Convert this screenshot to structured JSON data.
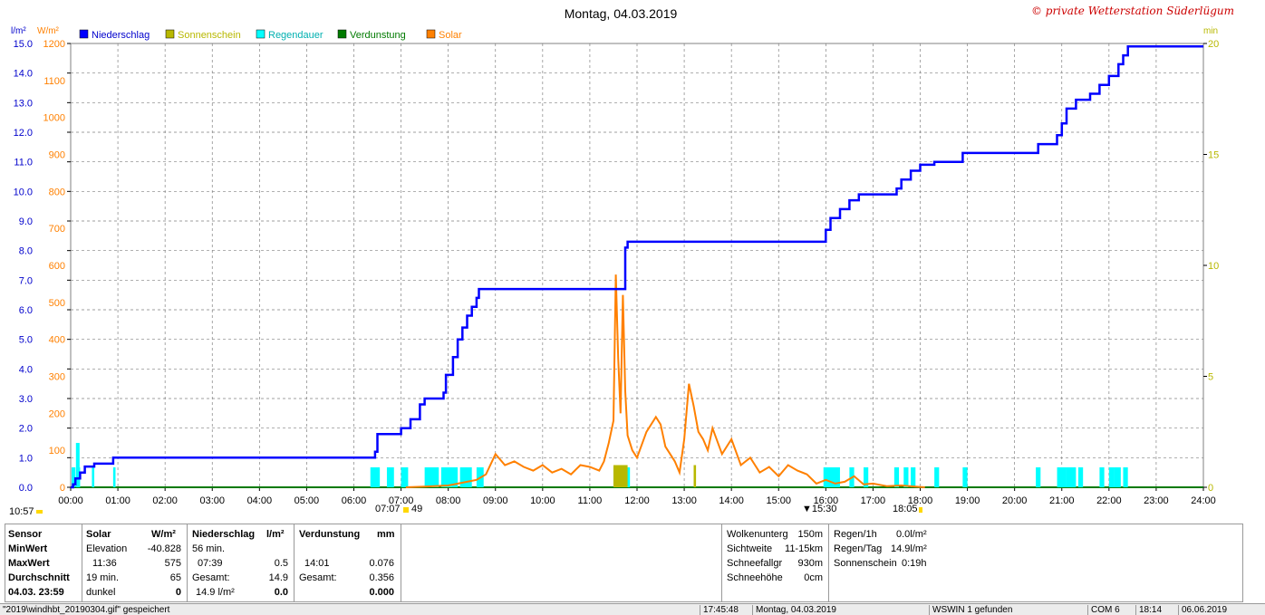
{
  "title": "Montag, 04.03.2019",
  "copyright": "© private Wetterstation Süderlügum",
  "units": {
    "left1": "l/m²",
    "left2": "W/m²",
    "right": "min"
  },
  "legend": [
    {
      "label": "Niederschlag",
      "color": "#0000ff"
    },
    {
      "label": "Sonnenschein",
      "color": "#b8b800"
    },
    {
      "label": "Regendauer",
      "color": "#00ffff"
    },
    {
      "label": "Verdunstung",
      "color": "#007a00"
    },
    {
      "label": "Solar",
      "color": "#ff8000"
    }
  ],
  "axis_left1_ticks": [
    "15.0",
    "14.0",
    "13.0",
    "12.0",
    "11.0",
    "10.0",
    "9.0",
    "8.0",
    "7.0",
    "6.0",
    "5.0",
    "4.0",
    "3.0",
    "2.0",
    "1.0",
    "0.0"
  ],
  "axis_left2_ticks": [
    "1200",
    "1100",
    "1000",
    "900",
    "800",
    "700",
    "600",
    "500",
    "400",
    "300",
    "200",
    "100",
    "0"
  ],
  "axis_right_ticks": [
    "20",
    "15",
    "10",
    "5",
    "0"
  ],
  "x_ticks": [
    "00:00",
    "01:00",
    "02:00",
    "03:00",
    "04:00",
    "05:00",
    "06:00",
    "07:00",
    "08:00",
    "09:00",
    "10:00",
    "11:00",
    "12:00",
    "13:00",
    "14:00",
    "15:00",
    "16:00",
    "17:00",
    "18:00",
    "19:00",
    "20:00",
    "21:00",
    "22:00",
    "23:00",
    "24:00"
  ],
  "sun_markers": {
    "left": "10:57",
    "rise": "07:07",
    "rise2": "49",
    "set": "18:05",
    "mark": "15:30"
  },
  "chart_data": {
    "type": "line",
    "x_range": [
      "00:00",
      "24:00"
    ],
    "ylim_niederschlag": [
      0,
      15
    ],
    "ylim_solar": [
      0,
      1200
    ],
    "ylim_minutes": [
      0,
      20
    ],
    "grid": true,
    "series": [
      {
        "name": "Niederschlag",
        "unit": "l/m²",
        "color": "#0000ff",
        "x": [
          0,
          0.05,
          0.1,
          0.2,
          0.3,
          0.5,
          0.9,
          6.45,
          6.5,
          7.0,
          7.2,
          7.4,
          7.5,
          7.9,
          7.95,
          8.1,
          8.2,
          8.3,
          8.4,
          8.5,
          8.6,
          8.65,
          11.75,
          11.8,
          15.95,
          16.0,
          16.1,
          16.3,
          16.5,
          16.7,
          17.5,
          17.6,
          17.8,
          18.0,
          18.3,
          18.9,
          20.4,
          20.5,
          20.9,
          21.0,
          21.1,
          21.3,
          21.6,
          21.8,
          22.0,
          22.2,
          22.3,
          22.4,
          24.0
        ],
        "y": [
          0,
          0.1,
          0.3,
          0.5,
          0.7,
          0.8,
          1.0,
          1.2,
          1.8,
          2.0,
          2.3,
          2.8,
          3.0,
          3.2,
          3.8,
          4.4,
          5.0,
          5.4,
          5.8,
          6.1,
          6.4,
          6.7,
          8.1,
          8.3,
          8.3,
          8.7,
          9.1,
          9.4,
          9.7,
          9.9,
          10.1,
          10.4,
          10.7,
          10.9,
          11.0,
          11.3,
          11.3,
          11.6,
          11.9,
          12.3,
          12.8,
          13.1,
          13.3,
          13.6,
          13.9,
          14.3,
          14.6,
          14.9,
          14.9
        ]
      },
      {
        "name": "Solar",
        "unit": "W/m²",
        "color": "#ff8000",
        "x": [
          7.1,
          7.5,
          8.0,
          8.4,
          8.6,
          8.8,
          9.0,
          9.2,
          9.4,
          9.6,
          9.8,
          10.0,
          10.2,
          10.4,
          10.6,
          10.8,
          11.0,
          11.2,
          11.3,
          11.4,
          11.5,
          11.55,
          11.6,
          11.65,
          11.7,
          11.75,
          11.8,
          11.9,
          12.0,
          12.2,
          12.4,
          12.5,
          12.6,
          12.8,
          12.9,
          13.0,
          13.1,
          13.2,
          13.3,
          13.4,
          13.5,
          13.6,
          13.8,
          14.0,
          14.2,
          14.4,
          14.6,
          14.8,
          15.0,
          15.2,
          15.4,
          15.6,
          15.8,
          16.0,
          16.2,
          16.4,
          16.6,
          16.8,
          17.0,
          17.3,
          17.6,
          17.9,
          18.1
        ],
        "y": [
          0,
          2,
          5,
          15,
          20,
          35,
          90,
          60,
          70,
          55,
          45,
          60,
          40,
          50,
          35,
          60,
          55,
          45,
          70,
          120,
          180,
          575,
          350,
          200,
          520,
          260,
          140,
          100,
          80,
          150,
          190,
          170,
          110,
          70,
          40,
          130,
          280,
          220,
          150,
          130,
          100,
          160,
          90,
          130,
          60,
          80,
          40,
          55,
          30,
          60,
          45,
          35,
          10,
          20,
          10,
          15,
          30,
          8,
          10,
          3,
          5,
          2,
          0
        ]
      },
      {
        "name": "Regendauer",
        "unit": "min",
        "color": "#00ffff",
        "intervals": [
          [
            0.02,
            0.1
          ],
          [
            0.15,
            0.2
          ],
          [
            0.45,
            0.5
          ],
          [
            0.9,
            0.95
          ],
          [
            6.35,
            6.55
          ],
          [
            6.7,
            6.85
          ],
          [
            7.0,
            7.15
          ],
          [
            7.5,
            7.8
          ],
          [
            7.85,
            8.2
          ],
          [
            8.25,
            8.5
          ],
          [
            8.6,
            8.75
          ],
          [
            11.5,
            11.85
          ],
          [
            15.95,
            16.3
          ],
          [
            16.5,
            16.6
          ],
          [
            16.8,
            16.9
          ],
          [
            17.45,
            17.55
          ],
          [
            17.65,
            17.75
          ],
          [
            17.8,
            17.9
          ],
          [
            18.3,
            18.4
          ],
          [
            18.9,
            19.0
          ],
          [
            20.45,
            20.55
          ],
          [
            20.9,
            21.1
          ],
          [
            21.1,
            21.3
          ],
          [
            21.35,
            21.45
          ],
          [
            21.8,
            21.9
          ],
          [
            22.0,
            22.1
          ],
          [
            22.1,
            22.25
          ],
          [
            22.3,
            22.4
          ]
        ],
        "peak": {
          "x": 0.15,
          "y": 2.0
        },
        "y": 0.9
      },
      {
        "name": "Sonnenschein",
        "unit": "min",
        "color": "#b8b800",
        "intervals": [
          [
            11.5,
            11.8
          ],
          [
            13.2,
            13.25
          ]
        ],
        "y": 1.0
      },
      {
        "name": "Verdunstung",
        "unit": "mm",
        "color": "#007a00",
        "x": [
          0,
          24
        ],
        "y": [
          0,
          0
        ]
      }
    ]
  },
  "table": {
    "col1": {
      "h": "Sensor",
      "rows": [
        "MinWert",
        "MaxWert",
        "Durchschnitt",
        "04.03.  23:59"
      ]
    },
    "solar": {
      "h": "Solar",
      "u": "W/m²",
      "rows": [
        [
          "Elevation",
          "-40.828"
        ],
        [
          "11:36",
          "575"
        ],
        [
          "19 min.",
          "65"
        ],
        [
          "dunkel",
          "0"
        ]
      ]
    },
    "nied": {
      "h": "Niederschlag",
      "u": "l/m²",
      "rows": [
        [
          "56 min.",
          ""
        ],
        [
          "07:39",
          "0.5"
        ],
        [
          "Gesamt:",
          "14.9"
        ],
        [
          "14.9 l/m²",
          "0.0"
        ]
      ]
    },
    "verd": {
      "h": "Verdunstung",
      "u": "mm",
      "rows": [
        [
          "",
          ""
        ],
        [
          "14:01",
          "0.076"
        ],
        [
          "Gesamt:",
          "0.356"
        ],
        [
          "",
          "0.000"
        ]
      ]
    },
    "cloud": [
      [
        "Wolkenunterg",
        "150m"
      ],
      [
        "Sichtweite",
        "11-15km"
      ],
      [
        "Schneefallgr",
        "930m"
      ],
      [
        "Schneehöhe",
        "0cm"
      ]
    ],
    "rain": [
      [
        "Regen/1h",
        "0.0l/m²"
      ],
      [
        "Regen/Tag",
        "14.9l/m²"
      ],
      [
        "Sonnenschein",
        "0:19h"
      ]
    ]
  },
  "status": {
    "s1": "\"2019\\windhbt_20190304.gif\" gespeichert",
    "s2": "17:45:48",
    "s3": "Montag, 04.03.2019",
    "s4": "WSWIN 1 gefunden",
    "s5": "COM 6",
    "s6": "18:14",
    "s7": "06.06.2019"
  }
}
